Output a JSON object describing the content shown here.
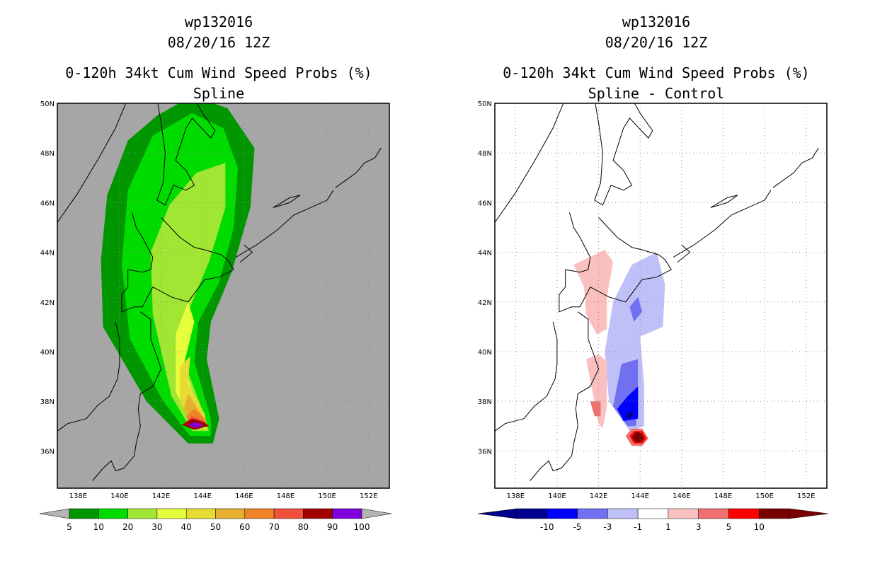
{
  "chart_data": [
    {
      "type": "heatmap",
      "title_lines": [
        "wp132016",
        "08/20/16 12Z",
        "0-120h 34kt Cum Wind Speed Probs (%)",
        "Spline"
      ],
      "xlabel": "",
      "ylabel": "",
      "x_ticks": [
        "138E",
        "140E",
        "142E",
        "144E",
        "146E",
        "148E",
        "150E",
        "152E"
      ],
      "y_ticks": [
        "50N",
        "48N",
        "46N",
        "44N",
        "42N",
        "40N",
        "38N",
        "36N"
      ],
      "xlim": [
        137,
        153
      ],
      "ylim": [
        34.5,
        50
      ],
      "background_color": "#a6a6a6",
      "grid": true,
      "colorbar": {
        "labels": [
          "5",
          "10",
          "20",
          "30",
          "40",
          "50",
          "60",
          "70",
          "80",
          "90",
          "100"
        ],
        "colors": [
          "#009600",
          "#00dc00",
          "#a0e632",
          "#e6ff3c",
          "#e6dc32",
          "#e6af2d",
          "#f08228",
          "#f0503c",
          "#a00000",
          "#8200dc"
        ],
        "end_color": "#b4b4b4"
      },
      "contour_levels": [
        {
          "level": 5,
          "color": "#009600",
          "polygon": [
            [
              144.5,
              36.3
            ],
            [
              143.3,
              36.3
            ],
            [
              141.3,
              38.0
            ],
            [
              139.2,
              41.0
            ],
            [
              139.1,
              43.7
            ],
            [
              139.4,
              46.3
            ],
            [
              140.4,
              48.5
            ],
            [
              141.8,
              49.5
            ],
            [
              143.5,
              50.3
            ],
            [
              145.2,
              49.8
            ],
            [
              146.5,
              48.2
            ],
            [
              146.3,
              45.8
            ],
            [
              145.4,
              43.2
            ],
            [
              144.4,
              41.2
            ],
            [
              144.2,
              39.7
            ],
            [
              144.8,
              37.3
            ]
          ]
        },
        {
          "level": 10,
          "color": "#00dc00",
          "polygon": [
            [
              144.4,
              36.6
            ],
            [
              143.4,
              36.6
            ],
            [
              142.1,
              38.0
            ],
            [
              140.5,
              40.5
            ],
            [
              140.1,
              43.5
            ],
            [
              140.4,
              46.5
            ],
            [
              141.6,
              48.7
            ],
            [
              143.5,
              49.6
            ],
            [
              145.0,
              49.0
            ],
            [
              145.7,
              47.4
            ],
            [
              145.5,
              45.0
            ],
            [
              144.8,
              42.8
            ],
            [
              143.8,
              41.2
            ],
            [
              143.6,
              39.6
            ],
            [
              144.4,
              37.3
            ]
          ]
        },
        {
          "level": 20,
          "color": "#a0e632",
          "polygon": [
            [
              144.3,
              36.8
            ],
            [
              143.5,
              36.8
            ],
            [
              142.5,
              38.2
            ],
            [
              141.6,
              41.5
            ],
            [
              141.5,
              44.0
            ],
            [
              142.4,
              45.9
            ],
            [
              143.7,
              47.2
            ],
            [
              145.1,
              47.6
            ],
            [
              145.1,
              45.8
            ],
            [
              144.3,
              43.6
            ],
            [
              143.4,
              41.8
            ],
            [
              143.1,
              39.6
            ],
            [
              144.1,
              37.4
            ]
          ]
        },
        {
          "level": 30,
          "color": "#e6ff3c",
          "polygon": [
            [
              144.2,
              36.9
            ],
            [
              143.6,
              36.9
            ],
            [
              142.7,
              38.4
            ],
            [
              142.7,
              40.7
            ],
            [
              143.3,
              42.0
            ],
            [
              143.6,
              41.2
            ],
            [
              143.1,
              39.5
            ],
            [
              143.8,
              37.6
            ]
          ]
        },
        {
          "level": 40,
          "color": "#e6dc32",
          "polygon": [
            [
              144.2,
              37.0
            ],
            [
              143.6,
              37.0
            ],
            [
              142.9,
              38.0
            ],
            [
              142.9,
              39.4
            ],
            [
              143.4,
              39.8
            ],
            [
              143.3,
              38.7
            ],
            [
              144.1,
              37.5
            ]
          ]
        },
        {
          "level": 50,
          "color": "#e6af2d",
          "polygon": [
            [
              144.2,
              37.0
            ],
            [
              143.6,
              37.0
            ],
            [
              143.1,
              37.7
            ],
            [
              143.3,
              38.3
            ],
            [
              144.0,
              37.4
            ]
          ]
        },
        {
          "level": 60,
          "color": "#f08228",
          "polygon": [
            [
              144.2,
              37.0
            ],
            [
              143.5,
              37.0
            ],
            [
              143.2,
              37.4
            ],
            [
              143.6,
              37.7
            ],
            [
              144.1,
              37.3
            ]
          ]
        },
        {
          "level": 70,
          "color": "#f0503c",
          "polygon": [
            [
              144.2,
              37.0
            ],
            [
              143.6,
              36.9
            ],
            [
              143.1,
              37.1
            ],
            [
              143.5,
              37.4
            ],
            [
              144.1,
              37.2
            ]
          ]
        },
        {
          "level": 80,
          "color": "#a00000",
          "polygon": [
            [
              144.3,
              37.0
            ],
            [
              143.6,
              36.85
            ],
            [
              143.0,
              37.05
            ],
            [
              143.5,
              37.3
            ],
            [
              144.1,
              37.15
            ]
          ]
        },
        {
          "level": 90,
          "color": "#8200dc",
          "polygon": [
            [
              144.0,
              37.0
            ],
            [
              143.6,
              36.93
            ],
            [
              143.3,
              37.05
            ],
            [
              143.6,
              37.15
            ],
            [
              143.9,
              37.1
            ]
          ]
        }
      ]
    },
    {
      "type": "heatmap",
      "title_lines": [
        "wp132016",
        "08/20/16 12Z",
        "0-120h 34kt Cum Wind Speed Probs (%)",
        "Spline - Control"
      ],
      "xlabel": "",
      "ylabel": "",
      "x_ticks": [
        "138E",
        "140E",
        "142E",
        "144E",
        "146E",
        "148E",
        "150E",
        "152E"
      ],
      "y_ticks": [
        "50N",
        "48N",
        "46N",
        "44N",
        "42N",
        "40N",
        "38N",
        "36N"
      ],
      "xlim": [
        137,
        153
      ],
      "ylim": [
        34.5,
        50
      ],
      "background_color": "#ffffff",
      "grid": true,
      "colorbar": {
        "labels": [
          "-10",
          "-5",
          "-3",
          "-1",
          "1",
          "3",
          "5",
          "10"
        ],
        "colors": [
          "#00008c",
          "#0000ff",
          "#7070f0",
          "#c0c0f8",
          "#ffffff",
          "#fac0c0",
          "#f07070",
          "#ff0000",
          "#780000"
        ]
      },
      "contour_levels": [
        {
          "level": -1,
          "color": "#c0c0f8",
          "polygon": [
            [
              143.5,
              36.8
            ],
            [
              142.5,
              38.0
            ],
            [
              142.3,
              40.0
            ],
            [
              142.7,
              42.0
            ],
            [
              143.6,
              43.5
            ],
            [
              144.8,
              44.0
            ],
            [
              145.2,
              42.7
            ],
            [
              145.1,
              41.0
            ],
            [
              144.0,
              40.6
            ],
            [
              144.2,
              38.6
            ],
            [
              144.2,
              37.0
            ]
          ]
        },
        {
          "level": -3,
          "color": "#7070f0",
          "polygon": [
            [
              143.4,
              37.0
            ],
            [
              142.7,
              37.8
            ],
            [
              143.1,
              39.5
            ],
            [
              143.9,
              39.7
            ],
            [
              143.9,
              38.2
            ],
            [
              143.8,
              37.0
            ]
          ]
        },
        {
          "level": -3,
          "color": "#7070f0",
          "polygon": [
            [
              143.7,
              41.2
            ],
            [
              143.5,
              41.8
            ],
            [
              143.9,
              42.2
            ],
            [
              144.1,
              41.6
            ]
          ]
        },
        {
          "level": -5,
          "color": "#0000ff",
          "polygon": [
            [
              143.2,
              37.2
            ],
            [
              142.9,
              37.7
            ],
            [
              143.4,
              38.2
            ],
            [
              143.9,
              38.6
            ],
            [
              143.9,
              37.3
            ]
          ]
        },
        {
          "level": -10,
          "color": "#00008c",
          "polygon": [
            [
              143.3,
              37.4
            ],
            [
              143.5,
              37.6
            ],
            [
              143.7,
              37.5
            ],
            [
              143.5,
              37.3
            ]
          ]
        },
        {
          "level": 1,
          "color": "#fac0c0",
          "polygon": [
            [
              141.3,
              42.6
            ],
            [
              140.8,
              43.5
            ],
            [
              142.3,
              44.1
            ],
            [
              142.7,
              43.6
            ],
            [
              142.4,
              42.2
            ],
            [
              142.4,
              40.9
            ],
            [
              141.9,
              40.7
            ],
            [
              141.4,
              41.5
            ]
          ]
        },
        {
          "level": 1,
          "color": "#fac0c0",
          "polygon": [
            [
              142.0,
              37.1
            ],
            [
              141.4,
              39.7
            ],
            [
              142.0,
              39.9
            ],
            [
              142.4,
              39.6
            ],
            [
              142.4,
              37.8
            ],
            [
              142.2,
              36.9
            ]
          ]
        },
        {
          "level": 3,
          "color": "#f07070",
          "polygon": [
            [
              141.8,
              37.4
            ],
            [
              141.6,
              38.0
            ],
            [
              142.1,
              38.0
            ],
            [
              142.1,
              37.4
            ]
          ]
        },
        {
          "level": 3,
          "color": "#f07070",
          "polygon": [
            [
              143.6,
              36.2
            ],
            [
              143.3,
              36.6
            ],
            [
              143.6,
              36.9
            ],
            [
              144.1,
              36.9
            ],
            [
              144.4,
              36.5
            ],
            [
              144.1,
              36.2
            ]
          ]
        },
        {
          "level": 5,
          "color": "#ff0000",
          "polygon": [
            [
              143.7,
              36.3
            ],
            [
              143.5,
              36.6
            ],
            [
              143.7,
              36.8
            ],
            [
              144.1,
              36.8
            ],
            [
              144.3,
              36.5
            ],
            [
              144.1,
              36.3
            ]
          ]
        },
        {
          "level": 10,
          "color": "#780000",
          "polygon": [
            [
              143.8,
              36.35
            ],
            [
              143.6,
              36.55
            ],
            [
              143.8,
              36.75
            ],
            [
              144.0,
              36.75
            ],
            [
              144.2,
              36.5
            ],
            [
              144.0,
              36.35
            ]
          ]
        }
      ]
    }
  ]
}
